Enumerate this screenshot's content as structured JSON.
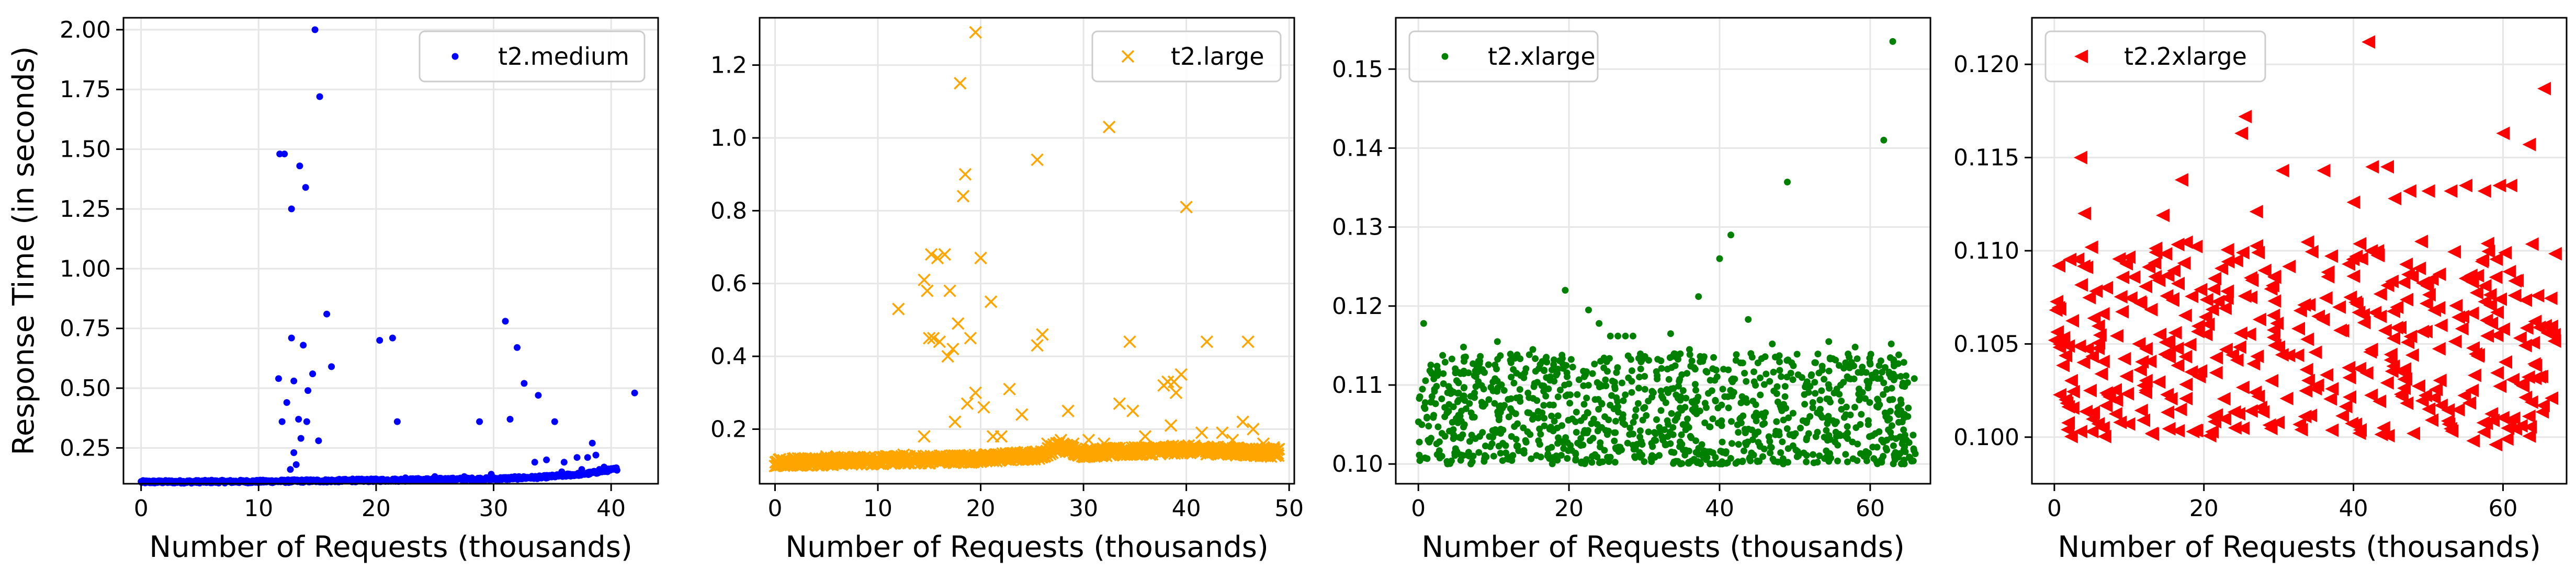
{
  "chart_data": [
    {
      "type": "scatter",
      "legend": "t2.medium",
      "legend_position": "top-right",
      "xlabel": "Number of Requests (thousands)",
      "ylabel": "Response Time (in seconds)",
      "xlim": [
        -1.5,
        44
      ],
      "ylim": [
        0.1,
        2.05
      ],
      "xticks": [
        0,
        10,
        20,
        30,
        40
      ],
      "yticks": [
        0.25,
        0.5,
        0.75,
        1.0,
        1.25,
        1.5,
        1.75,
        2.0
      ],
      "ytick_labels": [
        "0.25",
        "0.50",
        "0.75",
        "1.00",
        "1.25",
        "1.50",
        "1.75",
        "2.00"
      ],
      "grid": true,
      "color": "#0000ff",
      "marker": "dot",
      "baseline_band": [
        [
          0,
          0.105
        ],
        [
          10,
          0.107
        ],
        [
          20,
          0.112
        ],
        [
          30,
          0.118
        ],
        [
          34,
          0.125
        ],
        [
          38,
          0.14
        ],
        [
          40.5,
          0.16
        ]
      ],
      "points": [
        [
          14.8,
          2.0
        ],
        [
          15.2,
          1.72
        ],
        [
          11.8,
          1.48
        ],
        [
          12.2,
          1.48
        ],
        [
          13.5,
          1.43
        ],
        [
          14.0,
          1.34
        ],
        [
          12.8,
          1.25
        ],
        [
          15.8,
          0.81
        ],
        [
          31.0,
          0.78
        ],
        [
          12.8,
          0.71
        ],
        [
          20.3,
          0.7
        ],
        [
          21.4,
          0.71
        ],
        [
          13.8,
          0.68
        ],
        [
          32.0,
          0.67
        ],
        [
          16.2,
          0.59
        ],
        [
          14.6,
          0.56
        ],
        [
          11.7,
          0.54
        ],
        [
          13.0,
          0.53
        ],
        [
          32.6,
          0.52
        ],
        [
          14.2,
          0.49
        ],
        [
          42.0,
          0.48
        ],
        [
          33.8,
          0.47
        ],
        [
          12.4,
          0.44
        ],
        [
          12.0,
          0.36
        ],
        [
          13.4,
          0.37
        ],
        [
          14.1,
          0.36
        ],
        [
          21.8,
          0.36
        ],
        [
          28.8,
          0.36
        ],
        [
          31.4,
          0.37
        ],
        [
          35.2,
          0.36
        ],
        [
          13.6,
          0.29
        ],
        [
          15.1,
          0.28
        ],
        [
          13.0,
          0.23
        ],
        [
          13.2,
          0.18
        ],
        [
          12.7,
          0.16
        ],
        [
          38.4,
          0.27
        ],
        [
          38.7,
          0.22
        ],
        [
          38.0,
          0.21
        ],
        [
          37.1,
          0.21
        ],
        [
          36.0,
          0.19
        ],
        [
          34.5,
          0.2
        ],
        [
          33.5,
          0.19
        ],
        [
          39.4,
          0.17
        ],
        [
          40.4,
          0.16
        ],
        [
          39.0,
          0.16
        ],
        [
          25.0,
          0.13
        ],
        [
          27.5,
          0.13
        ],
        [
          29.8,
          0.14
        ],
        [
          18.0,
          0.12
        ],
        [
          22.5,
          0.125
        ],
        [
          26.3,
          0.12
        ],
        [
          31.8,
          0.13
        ],
        [
          35.8,
          0.15
        ],
        [
          37.5,
          0.16
        ],
        [
          6.0,
          0.115
        ],
        [
          9.0,
          0.112
        ]
      ]
    },
    {
      "type": "scatter",
      "legend": "t2.large",
      "legend_position": "top-right",
      "xlabel": "Number of Requests (thousands)",
      "ylabel": "",
      "xlim": [
        -1.5,
        50.5
      ],
      "ylim": [
        0.05,
        1.33
      ],
      "xticks": [
        0,
        10,
        20,
        30,
        40,
        50
      ],
      "yticks": [
        0.2,
        0.4,
        0.6,
        0.8,
        1.0,
        1.2
      ],
      "ytick_labels": [
        "0.2",
        "0.4",
        "0.6",
        "0.8",
        "1.0",
        "1.2"
      ],
      "grid": true,
      "color": "#ffa500",
      "marker": "x",
      "baseline_band": [
        [
          0,
          0.105
        ],
        [
          10,
          0.11
        ],
        [
          20,
          0.115
        ],
        [
          26,
          0.125
        ],
        [
          27.5,
          0.15
        ],
        [
          30,
          0.13
        ],
        [
          40,
          0.14
        ],
        [
          49,
          0.13
        ]
      ],
      "points": [
        [
          19.5,
          1.29
        ],
        [
          18.0,
          1.15
        ],
        [
          32.5,
          1.03
        ],
        [
          25.5,
          0.94
        ],
        [
          18.5,
          0.9
        ],
        [
          18.3,
          0.84
        ],
        [
          40.0,
          0.81
        ],
        [
          15.2,
          0.68
        ],
        [
          16.5,
          0.68
        ],
        [
          20.0,
          0.67
        ],
        [
          15.8,
          0.67
        ],
        [
          14.5,
          0.61
        ],
        [
          14.8,
          0.58
        ],
        [
          17.0,
          0.58
        ],
        [
          12.0,
          0.53
        ],
        [
          21.0,
          0.55
        ],
        [
          17.8,
          0.49
        ],
        [
          26.0,
          0.46
        ],
        [
          15.0,
          0.45
        ],
        [
          15.4,
          0.45
        ],
        [
          16.0,
          0.44
        ],
        [
          19.0,
          0.45
        ],
        [
          25.5,
          0.43
        ],
        [
          34.5,
          0.44
        ],
        [
          42.0,
          0.44
        ],
        [
          46.0,
          0.44
        ],
        [
          17.3,
          0.42
        ],
        [
          16.8,
          0.4
        ],
        [
          37.8,
          0.32
        ],
        [
          38.2,
          0.33
        ],
        [
          38.8,
          0.33
        ],
        [
          39.5,
          0.35
        ],
        [
          39.0,
          0.3
        ],
        [
          19.5,
          0.3
        ],
        [
          18.7,
          0.27
        ],
        [
          20.3,
          0.26
        ],
        [
          17.5,
          0.22
        ],
        [
          33.5,
          0.27
        ],
        [
          34.8,
          0.25
        ],
        [
          28.5,
          0.25
        ],
        [
          22.8,
          0.31
        ],
        [
          24.0,
          0.24
        ],
        [
          14.5,
          0.18
        ],
        [
          21.2,
          0.18
        ],
        [
          22.0,
          0.18
        ],
        [
          43.5,
          0.19
        ],
        [
          45.5,
          0.22
        ],
        [
          46.5,
          0.2
        ],
        [
          41.5,
          0.19
        ],
        [
          36.0,
          0.18
        ],
        [
          30.5,
          0.17
        ],
        [
          32.0,
          0.16
        ],
        [
          27.8,
          0.17
        ],
        [
          26.5,
          0.16
        ],
        [
          12.5,
          0.13
        ],
        [
          5.0,
          0.125
        ],
        [
          8.0,
          0.12
        ],
        [
          44.5,
          0.17
        ],
        [
          47.5,
          0.16
        ],
        [
          48.5,
          0.15
        ],
        [
          35.0,
          0.15
        ],
        [
          29.0,
          0.16
        ],
        [
          38.5,
          0.21
        ]
      ]
    },
    {
      "type": "scatter",
      "legend": "t2.xlarge",
      "legend_position": "top-left",
      "xlabel": "Number of Requests (thousands)",
      "ylabel": "",
      "xlim": [
        -3,
        68
      ],
      "ylim": [
        0.0975,
        0.1565
      ],
      "xticks": [
        0,
        20,
        40,
        60
      ],
      "yticks": [
        0.1,
        0.11,
        0.12,
        0.13,
        0.14,
        0.15
      ],
      "ytick_labels": [
        "0.10",
        "0.11",
        "0.12",
        "0.13",
        "0.14",
        "0.15"
      ],
      "grid": true,
      "color": "#008000",
      "marker": "dot",
      "cloud": {
        "x_range": [
          0,
          66
        ],
        "y_low": 0.1,
        "y_high": 0.114
      },
      "points": [
        [
          63.0,
          0.1535
        ],
        [
          61.8,
          0.141
        ],
        [
          49.0,
          0.1357
        ],
        [
          41.5,
          0.129
        ],
        [
          40.0,
          0.126
        ],
        [
          19.5,
          0.122
        ],
        [
          37.2,
          0.1212
        ],
        [
          22.6,
          0.1195
        ],
        [
          43.8,
          0.1183
        ],
        [
          0.7,
          0.1178
        ],
        [
          24.0,
          0.1178
        ],
        [
          33.5,
          0.1165
        ],
        [
          25.5,
          0.1162
        ],
        [
          26.5,
          0.1162
        ],
        [
          27.5,
          0.1162
        ],
        [
          28.5,
          0.1162
        ],
        [
          54.5,
          0.1155
        ],
        [
          10.5,
          0.1155
        ],
        [
          47.0,
          0.1152
        ],
        [
          62.8,
          0.1152
        ],
        [
          6.0,
          0.1148
        ],
        [
          15.2,
          0.1145
        ],
        [
          58.0,
          0.1148
        ],
        [
          36.0,
          0.1145
        ],
        [
          2.5,
          0.1012
        ],
        [
          64.5,
          0.1005
        ],
        [
          30.0,
          0.1003
        ],
        [
          45.0,
          0.1004
        ],
        [
          12.0,
          0.1006
        ]
      ]
    },
    {
      "type": "scatter",
      "legend": "t2.2xlarge",
      "legend_position": "top-left",
      "xlabel": "Number of Requests (thousands)",
      "ylabel": "",
      "xlim": [
        -3,
        68.5
      ],
      "ylim": [
        0.0975,
        0.1225
      ],
      "xticks": [
        0,
        20,
        40,
        60
      ],
      "yticks": [
        0.1,
        0.105,
        0.11,
        0.115,
        0.12
      ],
      "ytick_labels": [
        "0.100",
        "0.105",
        "0.110",
        "0.115",
        "0.120"
      ],
      "grid": true,
      "color": "#ff0000",
      "marker": "triangle-left",
      "cloud": {
        "x_range": [
          0,
          67
        ],
        "y_low": 0.1,
        "y_high": 0.1105
      },
      "points": [
        [
          42.0,
          0.1212
        ],
        [
          65.5,
          0.1187
        ],
        [
          25.5,
          0.1172
        ],
        [
          25.0,
          0.1163
        ],
        [
          60.0,
          0.1163
        ],
        [
          63.5,
          0.1157
        ],
        [
          3.5,
          0.115
        ],
        [
          30.5,
          0.1143
        ],
        [
          36.0,
          0.1143
        ],
        [
          44.5,
          0.1145
        ],
        [
          42.5,
          0.1145
        ],
        [
          17.0,
          0.1138
        ],
        [
          55.0,
          0.1135
        ],
        [
          57.5,
          0.1132
        ],
        [
          59.5,
          0.1135
        ],
        [
          61.0,
          0.1135
        ],
        [
          47.5,
          0.1132
        ],
        [
          45.5,
          0.1128
        ],
        [
          50.0,
          0.1132
        ],
        [
          53.0,
          0.1132
        ],
        [
          4.0,
          0.112
        ],
        [
          14.5,
          0.1119
        ],
        [
          27.0,
          0.1121
        ],
        [
          40.0,
          0.1126
        ],
        [
          3.5,
          0.1003
        ],
        [
          5.0,
          0.1003
        ],
        [
          6.5,
          0.1005
        ],
        [
          13.0,
          0.1002
        ],
        [
          18.5,
          0.1003
        ],
        [
          33.0,
          0.1004
        ],
        [
          44.0,
          0.1005
        ],
        [
          48.0,
          0.1002
        ],
        [
          56.0,
          0.0998
        ],
        [
          59.0,
          0.0996
        ],
        [
          60.5,
          0.0999
        ]
      ]
    }
  ]
}
